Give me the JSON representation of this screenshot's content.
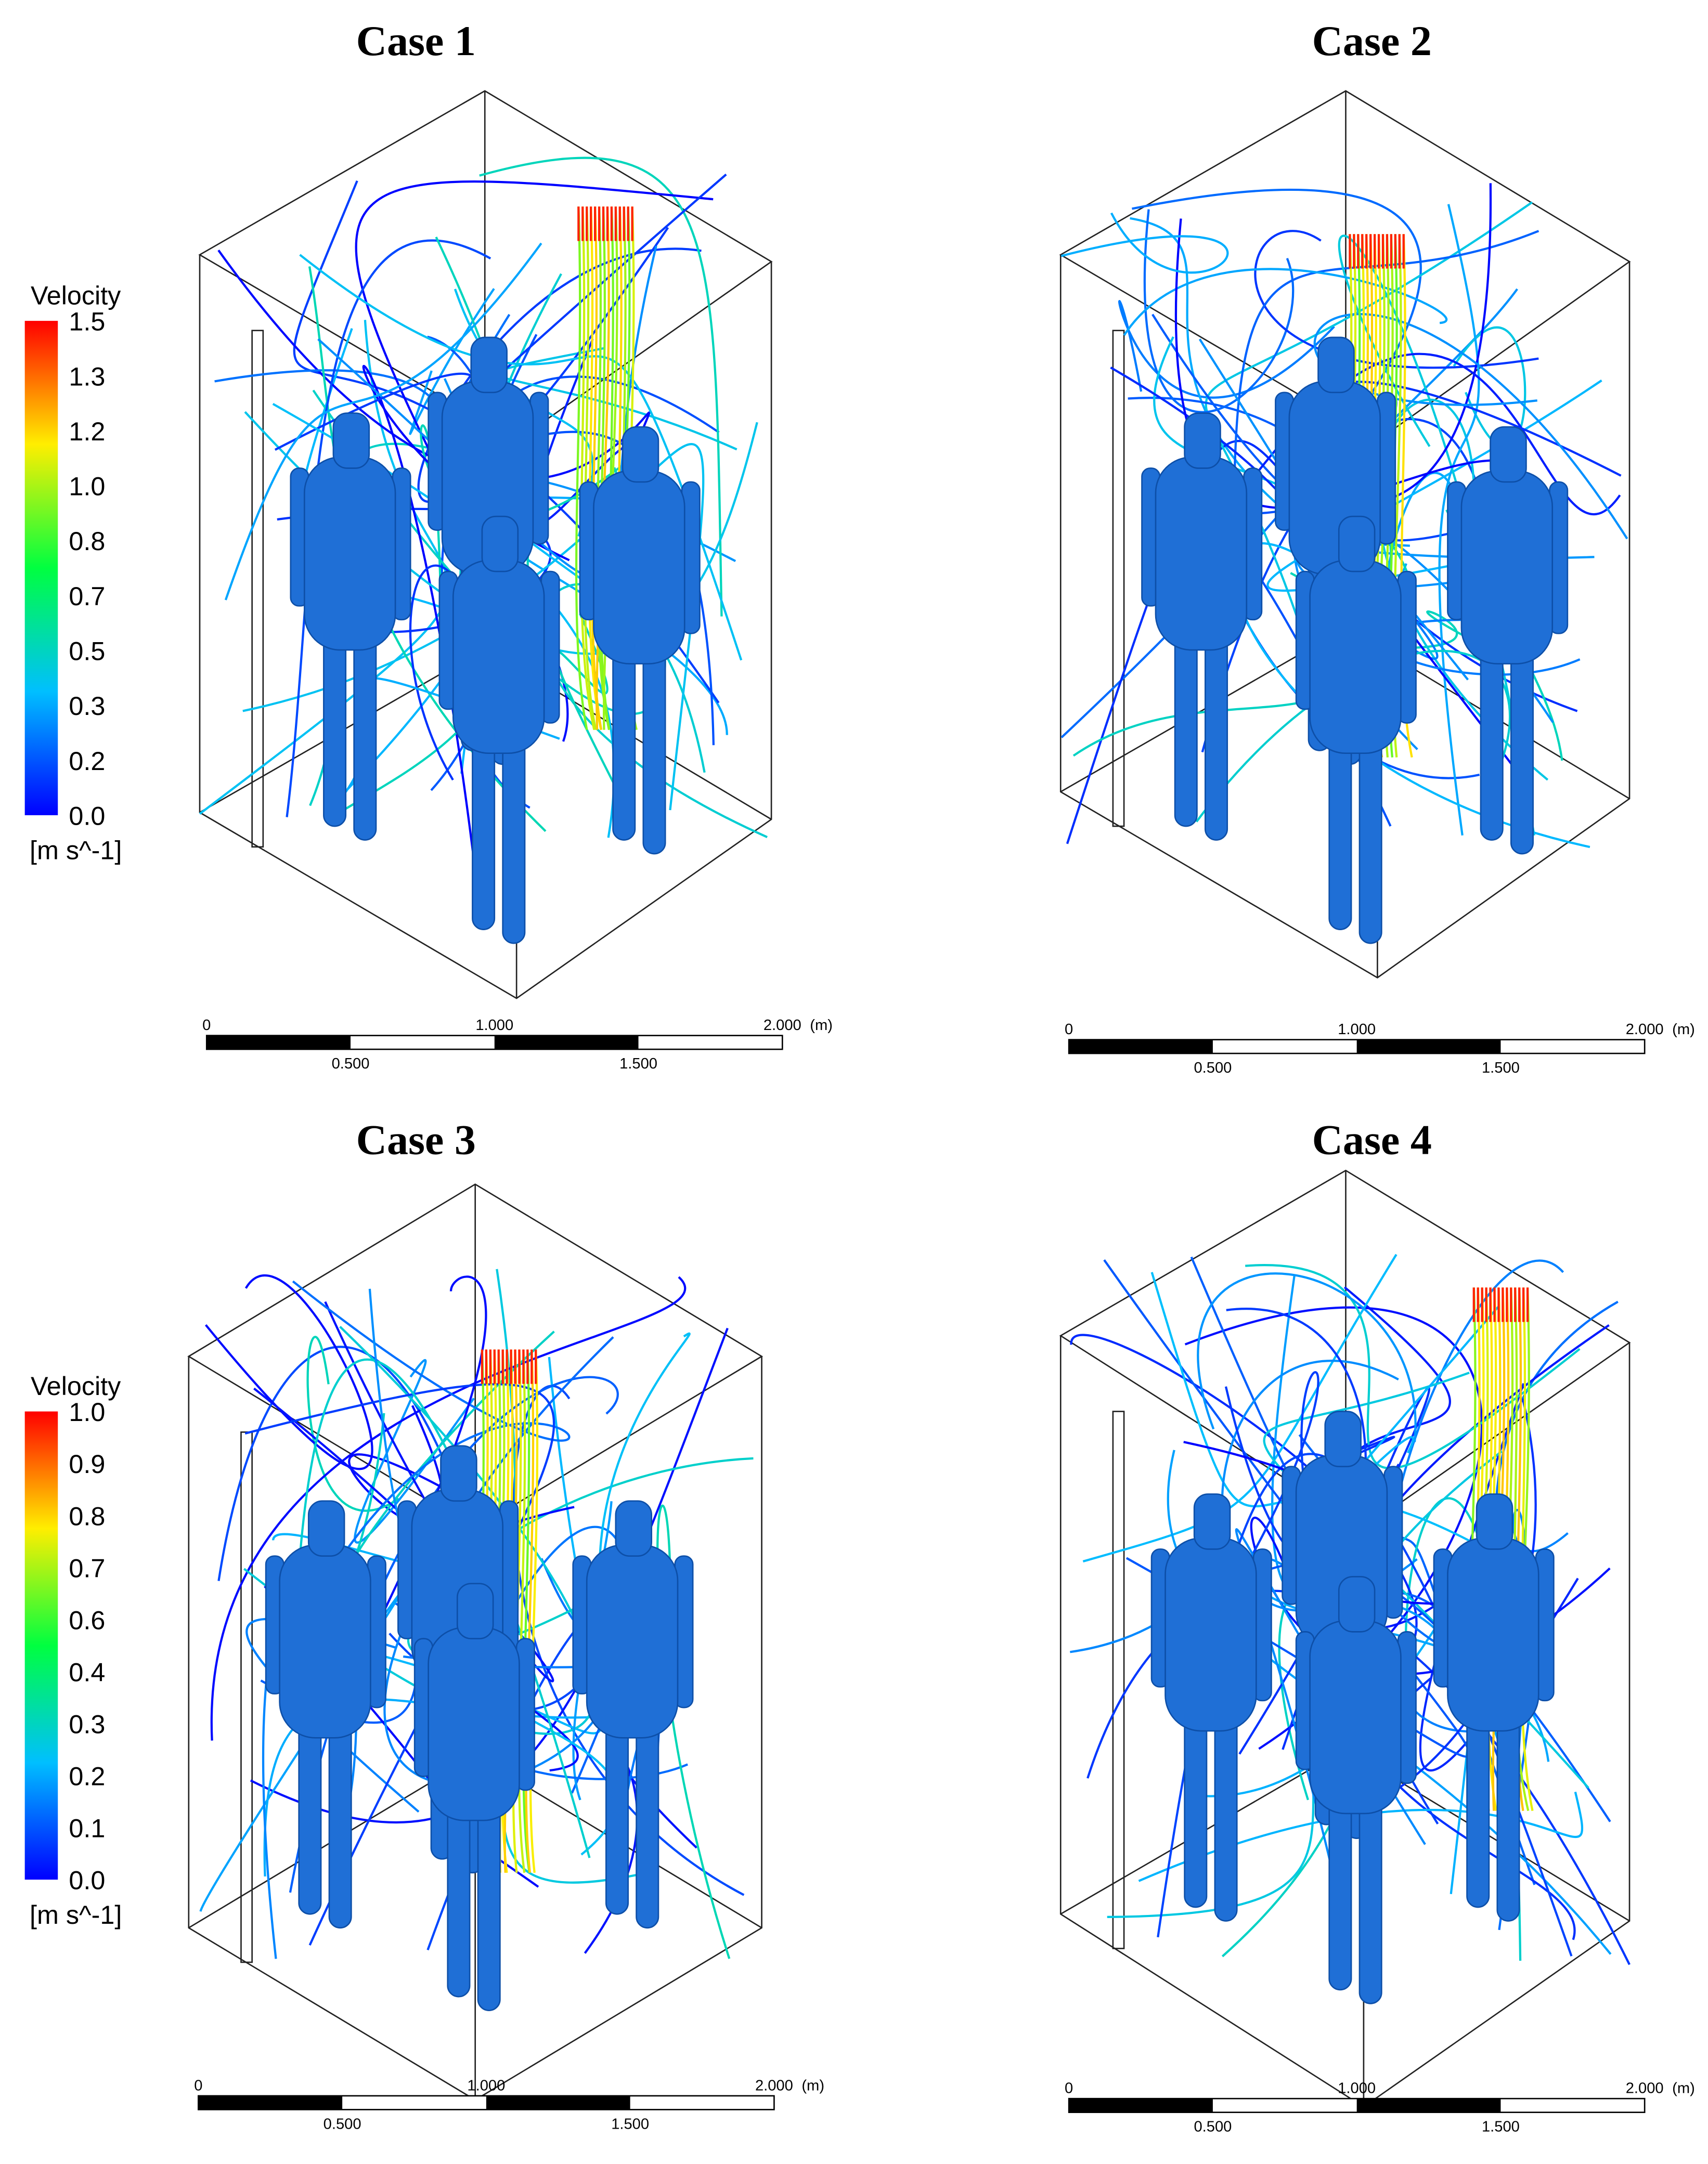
{
  "panels": [
    {
      "title": "Case 1",
      "scale": {
        "top": [
          "0",
          "1.000",
          "2.000"
        ],
        "unit": "(m)",
        "bottom": [
          "0.500",
          "1.500"
        ]
      }
    },
    {
      "title": "Case 2",
      "scale": {
        "top": [
          "0",
          "1.000",
          "2.000"
        ],
        "unit": "(m)",
        "bottom": [
          "0.500",
          "1.500"
        ]
      }
    },
    {
      "title": "Case 3",
      "scale": {
        "top": [
          "0",
          "1.000",
          "2.000"
        ],
        "unit": "(m)",
        "bottom": [
          "0.500",
          "1.500"
        ]
      }
    },
    {
      "title": "Case 4",
      "scale": {
        "top": [
          "0",
          "1.000",
          "2.000"
        ],
        "unit": "(m)",
        "bottom": [
          "0.500",
          "1.500"
        ]
      }
    }
  ],
  "colorbars": [
    {
      "title": "Velocity",
      "labels": [
        "1.5",
        "1.3",
        "1.2",
        "1.0",
        "0.8",
        "0.7",
        "0.5",
        "0.3",
        "0.2",
        "0.0"
      ],
      "unit": "[m s^-1]"
    },
    {
      "title": "Velocity",
      "labels": [
        "1.0",
        "0.9",
        "0.8",
        "0.7",
        "0.6",
        "0.4",
        "0.3",
        "0.2",
        "0.1",
        "0.0"
      ],
      "unit": "[m s^-1]"
    }
  ]
}
